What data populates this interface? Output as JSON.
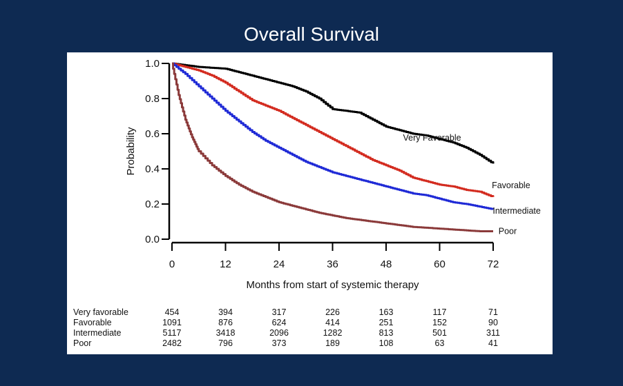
{
  "title": "Overall Survival",
  "chart_data": {
    "type": "line",
    "title": "Overall Survival",
    "xlabel": "Months from start of systemic therapy",
    "ylabel": "Probability",
    "xlim": [
      0,
      72
    ],
    "ylim": [
      0,
      1.0
    ],
    "x_ticks": [
      "0",
      "12",
      "24",
      "36",
      "48",
      "60",
      "72"
    ],
    "y_ticks": [
      "0.0",
      "0.2",
      "0.4",
      "0.6",
      "0.8",
      "1.0"
    ],
    "grid": false,
    "legend": "direct labels at curve ends",
    "series": [
      {
        "name": "Very Favorable",
        "color": "#000000",
        "x": [
          0,
          3,
          6,
          9,
          12,
          15,
          18,
          21,
          24,
          27,
          30,
          33,
          36,
          39,
          42,
          45,
          48,
          51,
          54,
          57,
          60,
          63,
          66,
          69,
          72
        ],
        "y": [
          1.0,
          0.99,
          0.98,
          0.975,
          0.97,
          0.95,
          0.93,
          0.91,
          0.89,
          0.87,
          0.84,
          0.8,
          0.74,
          0.73,
          0.72,
          0.68,
          0.64,
          0.62,
          0.6,
          0.59,
          0.57,
          0.55,
          0.52,
          0.48,
          0.43
        ]
      },
      {
        "name": "Favorable",
        "color": "#d32b1f",
        "x": [
          0,
          3,
          6,
          9,
          12,
          15,
          18,
          21,
          24,
          27,
          30,
          33,
          36,
          39,
          42,
          45,
          48,
          51,
          54,
          57,
          60,
          63,
          66,
          69,
          72
        ],
        "y": [
          1.0,
          0.98,
          0.96,
          0.93,
          0.89,
          0.84,
          0.79,
          0.76,
          0.73,
          0.69,
          0.65,
          0.61,
          0.57,
          0.53,
          0.49,
          0.45,
          0.42,
          0.39,
          0.35,
          0.33,
          0.31,
          0.3,
          0.28,
          0.27,
          0.24
        ]
      },
      {
        "name": "Intermediate",
        "color": "#1f2ad6",
        "x": [
          0,
          3,
          6,
          9,
          12,
          15,
          18,
          21,
          24,
          27,
          30,
          33,
          36,
          39,
          42,
          45,
          48,
          51,
          54,
          57,
          60,
          63,
          66,
          69,
          72
        ],
        "y": [
          1.0,
          0.94,
          0.87,
          0.8,
          0.73,
          0.67,
          0.61,
          0.56,
          0.52,
          0.48,
          0.44,
          0.41,
          0.38,
          0.36,
          0.34,
          0.32,
          0.3,
          0.28,
          0.26,
          0.25,
          0.23,
          0.21,
          0.2,
          0.185,
          0.17
        ]
      },
      {
        "name": "Poor",
        "color": "#8b3a3a",
        "x": [
          0,
          1.5,
          3,
          4.5,
          6,
          9,
          12,
          15,
          18,
          21,
          24,
          27,
          30,
          33,
          36,
          39,
          42,
          45,
          48,
          51,
          54,
          57,
          60,
          63,
          66,
          69,
          72
        ],
        "y": [
          1.0,
          0.82,
          0.68,
          0.58,
          0.5,
          0.42,
          0.36,
          0.31,
          0.27,
          0.24,
          0.21,
          0.19,
          0.17,
          0.15,
          0.135,
          0.12,
          0.11,
          0.1,
          0.09,
          0.08,
          0.07,
          0.065,
          0.06,
          0.055,
          0.05,
          0.045,
          0.045
        ]
      }
    ],
    "curve_labels": [
      {
        "series": "Very Favorable",
        "text": "Very Favorable",
        "x": 51.8,
        "y": 0.56
      },
      {
        "series": "Favorable",
        "text": "Favorable",
        "x": 71.7,
        "y": 0.29
      },
      {
        "series": "Intermediate",
        "text": "Intermediate",
        "x": 71.9,
        "y": 0.145
      },
      {
        "series": "Poor",
        "text": "Poor",
        "x": 73.2,
        "y": 0.03
      }
    ],
    "risk_table": {
      "times": [
        "0",
        "12",
        "24",
        "36",
        "48",
        "60",
        "72"
      ],
      "rows": [
        {
          "label": "Very favorable",
          "values": [
            "454",
            "394",
            "317",
            "226",
            "163",
            "117",
            "71"
          ]
        },
        {
          "label": "Favorable",
          "values": [
            "1091",
            "876",
            "624",
            "414",
            "251",
            "152",
            "90"
          ]
        },
        {
          "label": "Intermediate",
          "values": [
            "5117",
            "3418",
            "2096",
            "1282",
            "813",
            "501",
            "311"
          ]
        },
        {
          "label": "Poor",
          "values": [
            "2482",
            "796",
            "373",
            "189",
            "108",
            "63",
            "41"
          ]
        }
      ]
    }
  }
}
